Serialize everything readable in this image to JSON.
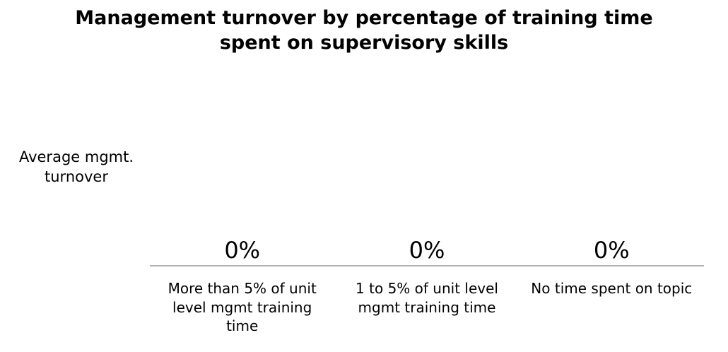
{
  "chart_data": {
    "type": "bar",
    "title_lines": [
      "Management turnover by percentage of training time",
      "spent on supervisory skills"
    ],
    "ylabel_lines": [
      "Average mgmt.",
      "turnover"
    ],
    "xlabel": "",
    "categories": [
      [
        "More than 5% of unit",
        "level mgmt training",
        "time"
      ],
      [
        "1 to 5% of unit level",
        "mgmt training time"
      ],
      [
        "No time spent on topic"
      ]
    ],
    "values": [
      0,
      0,
      0
    ],
    "data_labels": [
      "0%",
      "0%",
      "0%"
    ],
    "ylim": [
      0,
      1
    ],
    "grid": false,
    "legend": "none",
    "colors": {
      "axis": "#999999",
      "text": "#000000",
      "bar": "#4472c4"
    }
  }
}
